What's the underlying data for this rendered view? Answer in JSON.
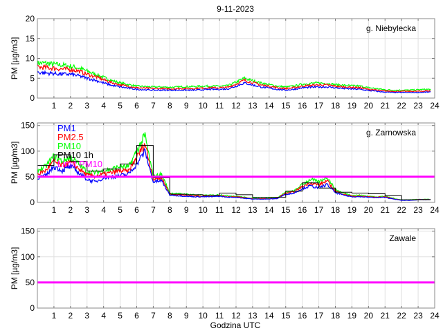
{
  "chart_data": {
    "type": "line",
    "title": "9-11-2023",
    "xlabel": "Godzina UTC",
    "xlim": [
      0,
      24
    ],
    "xticks": [
      1,
      2,
      3,
      4,
      5,
      6,
      7,
      8,
      9,
      10,
      11,
      12,
      13,
      14,
      15,
      16,
      17,
      18,
      19,
      20,
      21,
      22,
      23,
      24
    ],
    "x_halfhour_start": 0,
    "x_step_hours": 0.5,
    "grid": true,
    "legend": {
      "placement": "top-left (middle panel)",
      "entries": [
        {
          "label": "PM1",
          "color": "#0000ff"
        },
        {
          "label": "PM2.5",
          "color": "#ff0000"
        },
        {
          "label": "PM10",
          "color": "#00ff00"
        },
        {
          "label": "PM10 1h",
          "color": "#000000"
        },
        {
          "label": "Limit PM10",
          "color": "#ff00ff"
        }
      ]
    },
    "panels": [
      {
        "station": "g. Niebylecka",
        "ylabel": "PM [µg/m3]",
        "ylim": [
          0,
          20
        ],
        "yticks": [
          0,
          5,
          10,
          15,
          20
        ],
        "limit": null,
        "series": [
          {
            "name": "PM10",
            "color": "#00ff00",
            "values": [
              8.8,
              8.8,
              8.5,
              8.3,
              8.0,
              7.6,
              6.8,
              6.0,
              5.2,
              4.4,
              3.8,
              3.4,
              3.0,
              2.9,
              2.8,
              2.8,
              2.7,
              2.8,
              2.9,
              2.9,
              3.0,
              3.0,
              3.0,
              3.1,
              4.0,
              5.0,
              4.4,
              3.8,
              3.4,
              3.0,
              2.8,
              3.0,
              3.5,
              3.7,
              3.8,
              3.7,
              3.4,
              3.2,
              3.1,
              3.0,
              2.6,
              2.4,
              2.1,
              2.0,
              2.0,
              2.0,
              2.1,
              2.2
            ]
          },
          {
            "name": "PM2.5",
            "color": "#ff0000",
            "values": [
              7.8,
              7.7,
              7.5,
              7.3,
              7.2,
              6.8,
              6.0,
              5.4,
              4.6,
              3.9,
              3.3,
              3.0,
              2.6,
              2.5,
              2.4,
              2.4,
              2.3,
              2.4,
              2.4,
              2.4,
              2.5,
              2.6,
              2.6,
              2.7,
              3.5,
              4.5,
              3.9,
              3.3,
              3.0,
              2.6,
              2.4,
              2.6,
              3.0,
              3.2,
              3.3,
              3.3,
              3.0,
              2.8,
              2.7,
              2.6,
              2.2,
              2.0,
              1.8,
              1.7,
              1.7,
              1.7,
              1.7,
              1.8
            ]
          },
          {
            "name": "PM1",
            "color": "#0000ff",
            "values": [
              6.5,
              6.3,
              6.2,
              6.0,
              6.0,
              5.6,
              5.0,
              4.5,
              3.8,
              3.2,
              2.8,
              2.5,
              2.2,
              2.1,
              2.0,
              2.0,
              2.0,
              2.0,
              2.0,
              2.0,
              2.1,
              2.2,
              2.2,
              2.3,
              3.0,
              3.8,
              3.3,
              2.8,
              2.5,
              2.2,
              2.0,
              2.2,
              2.6,
              2.7,
              2.8,
              2.8,
              2.6,
              2.4,
              2.3,
              2.2,
              1.9,
              1.7,
              1.5,
              1.4,
              1.4,
              1.4,
              1.4,
              1.5
            ]
          }
        ],
        "hourly_pm10": null
      },
      {
        "station": "g. Zarnowska",
        "ylabel": "PM [µg/m3]",
        "ylim": [
          0,
          155
        ],
        "yticks": [
          0,
          50,
          100,
          150
        ],
        "limit": 50,
        "series": [
          {
            "name": "PM10",
            "color": "#00ff00",
            "values": [
              62,
              70,
              90,
              80,
              88,
              75,
              60,
              58,
              62,
              65,
              70,
              68,
              100,
              130,
              50,
              55,
              18,
              17,
              16,
              15,
              14,
              14,
              15,
              13,
              12,
              10,
              8,
              8,
              8,
              9,
              20,
              22,
              35,
              45,
              40,
              50,
              25,
              18,
              14,
              14,
              12,
              11,
              12,
              8,
              5,
              5,
              6,
              6
            ]
          },
          {
            "name": "PM2.5",
            "color": "#ff0000",
            "values": [
              55,
              62,
              80,
              71,
              78,
              66,
              53,
              51,
              55,
              58,
              62,
              60,
              88,
              115,
              45,
              48,
              16,
              15,
              14,
              13,
              12,
              12,
              13,
              11,
              11,
              9,
              7,
              7,
              7,
              8,
              18,
              20,
              31,
              38,
              34,
              42,
              22,
              16,
              12,
              12,
              11,
              10,
              11,
              7,
              4.5,
              4.5,
              5.5,
              5.5
            ]
          },
          {
            "name": "PM1",
            "color": "#0000ff",
            "values": [
              48,
              52,
              70,
              62,
              70,
              58,
              45,
              40,
              48,
              50,
              52,
              55,
              75,
              100,
              40,
              42,
              14,
              13,
              12,
              11,
              11,
              11,
              12,
              10,
              10,
              8,
              6.5,
              6.5,
              6.5,
              7.5,
              16,
              18,
              27,
              32,
              28,
              35,
              19,
              14,
              11,
              11,
              10,
              9,
              10,
              6.5,
              4,
              4,
              5,
              5
            ]
          }
        ],
        "hourly_pm10": [
          72,
          93,
          80,
          61,
          65,
          75,
          111,
          48,
          16,
          15,
          14,
          18,
          15,
          10,
          10,
          22,
          38,
          28,
          20,
          18,
          17,
          13,
          5,
          5
        ]
      },
      {
        "station": "Zawale",
        "ylabel": "PM [µg/m3]",
        "ylim": [
          0,
          155
        ],
        "yticks": [
          0,
          50,
          100,
          150
        ],
        "limit": 50,
        "series": [],
        "hourly_pm10": null
      }
    ]
  }
}
